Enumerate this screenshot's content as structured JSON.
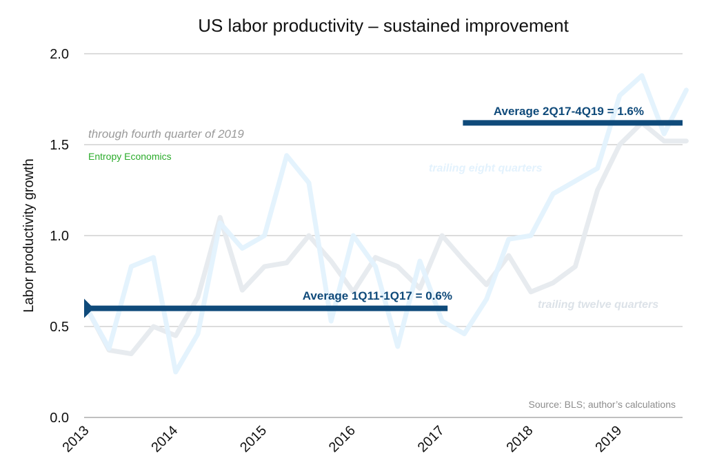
{
  "chart_data": {
    "type": "line",
    "title": "US labor productivity – sustained improvement",
    "subtitle": "through fourth quarter of 2019",
    "credit": "Entropy Economics",
    "source": "Source: BLS; author’s calculations",
    "ylabel": "Labor productivity growth",
    "xlabel": "",
    "ylim": [
      0,
      2.0
    ],
    "yticks": [
      "0.0",
      "0.5",
      "1.0",
      "1.5",
      "2.0"
    ],
    "xticks": [
      "2013",
      "2014",
      "2015",
      "2016",
      "2017",
      "2018",
      "2019"
    ],
    "grid": true,
    "colors": {
      "eight_quarter": "#e3f2fd",
      "twelve_quarter": "#e6eaee",
      "average": "#0f4a7a",
      "gridline": "#c8c8c8"
    },
    "x": [
      "1Q13",
      "2Q13",
      "3Q13",
      "4Q13",
      "1Q14",
      "2Q14",
      "3Q14",
      "4Q14",
      "1Q15",
      "2Q15",
      "3Q15",
      "4Q15",
      "1Q16",
      "2Q16",
      "3Q16",
      "4Q16",
      "1Q17",
      "2Q17",
      "3Q17",
      "4Q17",
      "1Q18",
      "2Q18",
      "3Q18",
      "4Q18",
      "1Q19",
      "2Q19",
      "3Q19",
      "4Q19"
    ],
    "series": [
      {
        "name": "trailing eight quarters",
        "values": [
          0.6,
          0.38,
          0.83,
          0.88,
          0.25,
          0.46,
          1.07,
          0.93,
          1.0,
          1.44,
          1.29,
          0.53,
          1.0,
          0.83,
          0.39,
          0.86,
          0.53,
          0.46,
          0.65,
          0.98,
          1.0,
          1.23,
          1.3,
          1.37,
          1.77,
          1.88,
          1.56,
          1.8
        ]
      },
      {
        "name": "trailing twelve quarters",
        "values": [
          0.6,
          0.37,
          0.35,
          0.5,
          0.45,
          0.66,
          1.1,
          0.7,
          0.83,
          0.85,
          1.0,
          0.86,
          0.69,
          0.88,
          0.83,
          0.71,
          1.0,
          0.86,
          0.73,
          0.89,
          0.69,
          0.74,
          0.83,
          1.25,
          1.5,
          1.62,
          1.52,
          1.52
        ]
      }
    ],
    "averages": [
      {
        "label": "Average 1Q11-1Q17 = 0.6%",
        "value": 0.6,
        "from": "1Q13",
        "to": "1Q17"
      },
      {
        "label": "Average 2Q17-4Q19 = 1.6%",
        "value": 1.62,
        "from": "2Q17",
        "to": "4Q19"
      }
    ]
  }
}
